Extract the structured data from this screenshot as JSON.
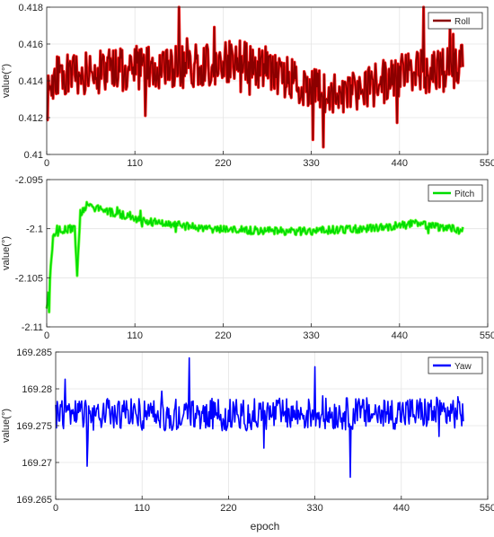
{
  "figure": {
    "xlabel_shared": "epoch"
  },
  "chart_data": [
    {
      "type": "line",
      "series": [
        {
          "name": "Roll",
          "color": "#8B0000",
          "highlight": "#ff0000"
        }
      ],
      "ylabel": "value(°)",
      "xlabel": "",
      "xlim": [
        0,
        550
      ],
      "ylim": [
        0.41,
        0.418
      ],
      "xticks": [
        0,
        110,
        220,
        330,
        440,
        550
      ],
      "yticks": [
        0.41,
        0.412,
        0.414,
        0.416,
        0.418
      ],
      "ytick_labels": [
        "0.41",
        "0.412",
        "0.414",
        "0.416",
        "0.418"
      ],
      "grid": true,
      "legend": "top-right",
      "n_points": 520,
      "mean_profile": [
        [
          0,
          0.4128
        ],
        [
          8,
          0.4142
        ],
        [
          60,
          0.4145
        ],
        [
          110,
          0.4147
        ],
        [
          180,
          0.4148
        ],
        [
          240,
          0.415
        ],
        [
          280,
          0.4146
        ],
        [
          320,
          0.4138
        ],
        [
          360,
          0.4133
        ],
        [
          390,
          0.4136
        ],
        [
          440,
          0.4142
        ],
        [
          480,
          0.4146
        ],
        [
          520,
          0.4148
        ]
      ],
      "noise_amplitude": 0.0012,
      "extremes": [
        [
          165,
          0.418
        ],
        [
          470,
          0.418
        ],
        [
          345,
          0.4104
        ],
        [
          332,
          0.4108
        ],
        [
          175,
          0.4163
        ]
      ]
    },
    {
      "type": "line",
      "series": [
        {
          "name": "Pitch",
          "color": "#00dd00",
          "highlight": "#66ff33"
        }
      ],
      "ylabel": "value(°)",
      "xlabel": "",
      "xlim": [
        0,
        550
      ],
      "ylim": [
        -2.11,
        -2.095
      ],
      "xticks": [
        0,
        110,
        220,
        330,
        440,
        550
      ],
      "yticks": [
        -2.11,
        -2.105,
        -2.1,
        -2.095
      ],
      "ytick_labels": [
        "-2.11",
        "-2.105",
        "-2.1",
        "-2.095"
      ],
      "grid": true,
      "legend": "top-right",
      "n_points": 520,
      "mean_profile": [
        [
          0,
          -2.1085
        ],
        [
          3,
          -2.106
        ],
        [
          8,
          -2.101
        ],
        [
          12,
          -2.1001
        ],
        [
          35,
          -2.1
        ],
        [
          38,
          -2.1045
        ],
        [
          42,
          -2.0985
        ],
        [
          50,
          -2.0976
        ],
        [
          80,
          -2.0983
        ],
        [
          130,
          -2.0993
        ],
        [
          200,
          -2.1
        ],
        [
          300,
          -2.1003
        ],
        [
          400,
          -2.1
        ],
        [
          460,
          -2.0995
        ],
        [
          520,
          -2.1002
        ]
      ],
      "noise_amplitude": 0.0004,
      "extremes": [
        [
          3,
          -2.1085
        ],
        [
          38,
          -2.1048
        ],
        [
          50,
          -2.0973
        ]
      ]
    },
    {
      "type": "line",
      "series": [
        {
          "name": "Yaw",
          "color": "#0000ff",
          "highlight": "#0000ff"
        }
      ],
      "ylabel": "value(°)",
      "xlabel": "epoch",
      "xlim": [
        0,
        550
      ],
      "ylim": [
        169.265,
        169.285
      ],
      "xticks": [
        0,
        110,
        220,
        330,
        440,
        550
      ],
      "yticks": [
        169.265,
        169.27,
        169.275,
        169.28,
        169.285
      ],
      "ytick_labels": [
        "169.265",
        "169.27",
        "169.275",
        "169.28",
        "169.285"
      ],
      "grid": true,
      "legend": "top-right",
      "n_points": 520,
      "mean_profile": [
        [
          0,
          169.2765
        ],
        [
          260,
          169.2765
        ],
        [
          520,
          169.2768
        ]
      ],
      "noise_amplitude": 0.0022,
      "extremes": [
        [
          170,
          169.2842
        ],
        [
          375,
          169.268
        ],
        [
          12,
          169.2813
        ],
        [
          40,
          169.2695
        ],
        [
          330,
          169.283
        ]
      ]
    }
  ]
}
